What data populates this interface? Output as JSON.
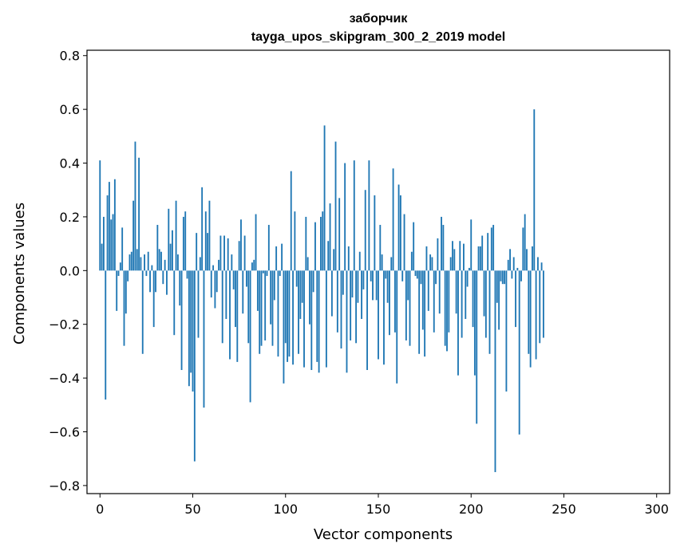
{
  "chart_data": {
    "type": "bar",
    "title": "заборчик",
    "subtitle": "tayga_upos_skipgram_300_2_2019 model",
    "xlabel": "Vector components",
    "ylabel": "Components values",
    "xlim": [
      -7,
      307
    ],
    "ylim": [
      -0.83,
      0.82
    ],
    "xticks": [
      0,
      50,
      100,
      150,
      200,
      250,
      300
    ],
    "yticks": [
      -0.8,
      -0.6,
      -0.4,
      -0.2,
      0.0,
      0.2,
      0.4,
      0.6,
      0.8
    ],
    "ytick_labels": [
      "−0.8",
      "−0.6",
      "−0.4",
      "−0.2",
      "0.0",
      "0.2",
      "0.4",
      "0.6",
      "0.8"
    ],
    "grid": false,
    "bar_color": "#1f77b4",
    "x_start": 0,
    "values": [
      0.41,
      0.1,
      0.2,
      -0.48,
      0.28,
      0.33,
      0.19,
      0.21,
      0.34,
      -0.15,
      -0.02,
      0.03,
      0.16,
      -0.28,
      -0.16,
      -0.04,
      0.06,
      0.07,
      0.26,
      0.48,
      0.08,
      0.42,
      0.05,
      -0.31,
      0.06,
      -0.02,
      0.07,
      -0.08,
      0.02,
      -0.21,
      -0.08,
      0.17,
      0.08,
      0.07,
      -0.05,
      0.04,
      -0.09,
      0.23,
      0.1,
      0.15,
      -0.24,
      0.26,
      0.06,
      -0.13,
      -0.37,
      0.2,
      0.22,
      -0.03,
      -0.43,
      -0.38,
      -0.45,
      -0.71,
      0.14,
      -0.25,
      0.05,
      0.31,
      -0.51,
      0.22,
      0.14,
      0.26,
      -0.1,
      0.02,
      -0.14,
      -0.08,
      0.04,
      0.13,
      -0.27,
      0.13,
      -0.18,
      0.12,
      -0.33,
      0.06,
      -0.07,
      -0.21,
      -0.34,
      0.11,
      0.19,
      -0.16,
      0.13,
      -0.06,
      -0.27,
      -0.49,
      0.03,
      0.04,
      0.21,
      -0.15,
      -0.31,
      -0.28,
      -0.01,
      -0.26,
      -0.02,
      0.17,
      -0.2,
      -0.28,
      -0.11,
      0.09,
      -0.32,
      -0.02,
      0.1,
      -0.42,
      -0.27,
      -0.34,
      -0.32,
      0.37,
      -0.35,
      0.22,
      -0.06,
      -0.31,
      -0.18,
      -0.12,
      -0.36,
      0.2,
      0.05,
      -0.2,
      -0.37,
      -0.08,
      0.18,
      -0.34,
      -0.38,
      0.2,
      0.22,
      0.54,
      -0.36,
      0.11,
      0.25,
      -0.17,
      0.08,
      0.48,
      -0.23,
      0.27,
      -0.29,
      -0.09,
      0.4,
      -0.38,
      0.09,
      -0.26,
      -0.1,
      0.41,
      -0.27,
      -0.12,
      0.07,
      -0.18,
      -0.07,
      0.3,
      -0.37,
      0.41,
      -0.04,
      -0.11,
      0.28,
      -0.11,
      -0.33,
      0.17,
      0.06,
      -0.35,
      -0.03,
      -0.12,
      -0.24,
      0.05,
      0.38,
      -0.23,
      -0.42,
      0.32,
      0.28,
      -0.04,
      0.21,
      -0.26,
      -0.11,
      -0.28,
      0.07,
      0.18,
      -0.02,
      -0.03,
      -0.31,
      -0.05,
      -0.22,
      -0.32,
      0.09,
      -0.15,
      0.06,
      0.05,
      -0.23,
      -0.05,
      0.12,
      -0.16,
      0.2,
      0.17,
      -0.28,
      -0.3,
      -0.23,
      0.05,
      0.11,
      0.08,
      -0.16,
      -0.39,
      0.11,
      -0.25,
      0.1,
      -0.18,
      -0.06,
      0.01,
      0.19,
      -0.21,
      -0.39,
      -0.57,
      0.09,
      0.09,
      0.13,
      -0.17,
      -0.25,
      0.14,
      -0.31,
      0.16,
      0.17,
      -0.75,
      -0.12,
      -0.22,
      -0.04,
      -0.05,
      -0.05,
      -0.45,
      0.04,
      0.08,
      -0.03,
      0.05,
      -0.21,
      0.01,
      -0.61,
      -0.04,
      0.16,
      0.21,
      0.08,
      -0.31,
      -0.36,
      0.09,
      0.6,
      -0.33,
      0.05,
      -0.27,
      0.03,
      -0.25
    ]
  }
}
